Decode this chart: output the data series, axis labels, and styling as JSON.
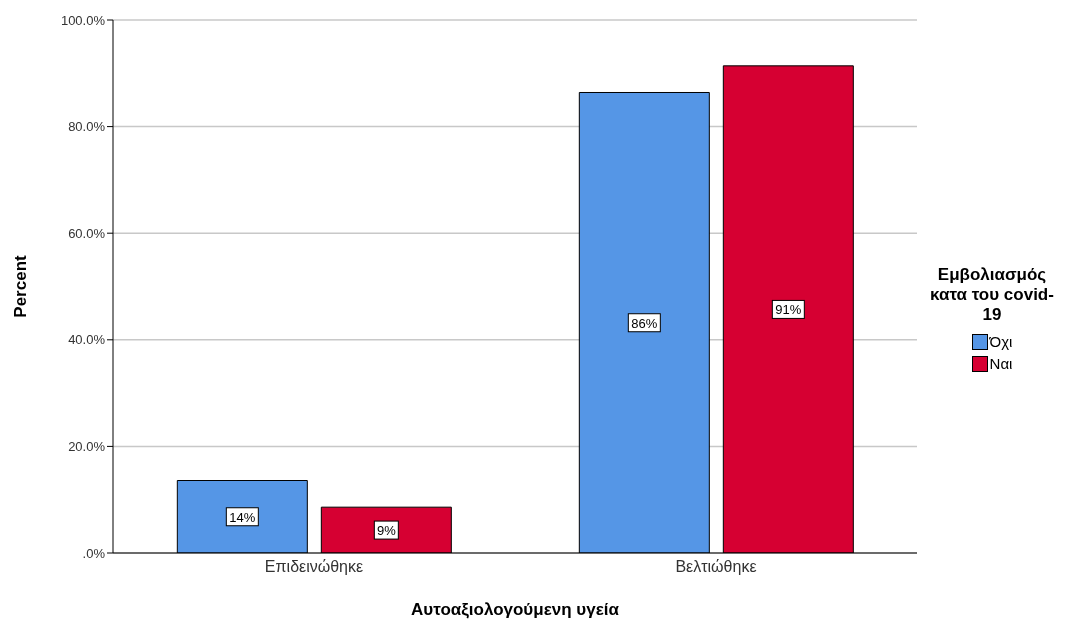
{
  "chart_data": {
    "type": "bar",
    "xlabel": "Αυτοαξιολογούμενη υγεία",
    "ylabel": "Percent",
    "legend_title": "Εμβολιασμός κατα του covid-19",
    "categories": [
      "Επιδεινώθηκε",
      "Βελτιώθηκε"
    ],
    "series": [
      {
        "name": "Όχι",
        "color": "#5596e6",
        "values": [
          13.6,
          86.4
        ],
        "value_labels": [
          "14%",
          "86%"
        ]
      },
      {
        "name": "Ναι",
        "color": "#d60032",
        "values": [
          8.6,
          91.4
        ],
        "value_labels": [
          "9%",
          "91%"
        ]
      }
    ],
    "ylim": [
      0,
      100
    ],
    "yticks": [
      {
        "value": 0,
        "label": ".0%"
      },
      {
        "value": 20,
        "label": "20.0%"
      },
      {
        "value": 40,
        "label": "40.0%"
      },
      {
        "value": 60,
        "label": "60.0%"
      },
      {
        "value": 80,
        "label": "80.0%"
      },
      {
        "value": 100,
        "label": "100.0%"
      }
    ],
    "grid": "y",
    "legend": "right"
  }
}
